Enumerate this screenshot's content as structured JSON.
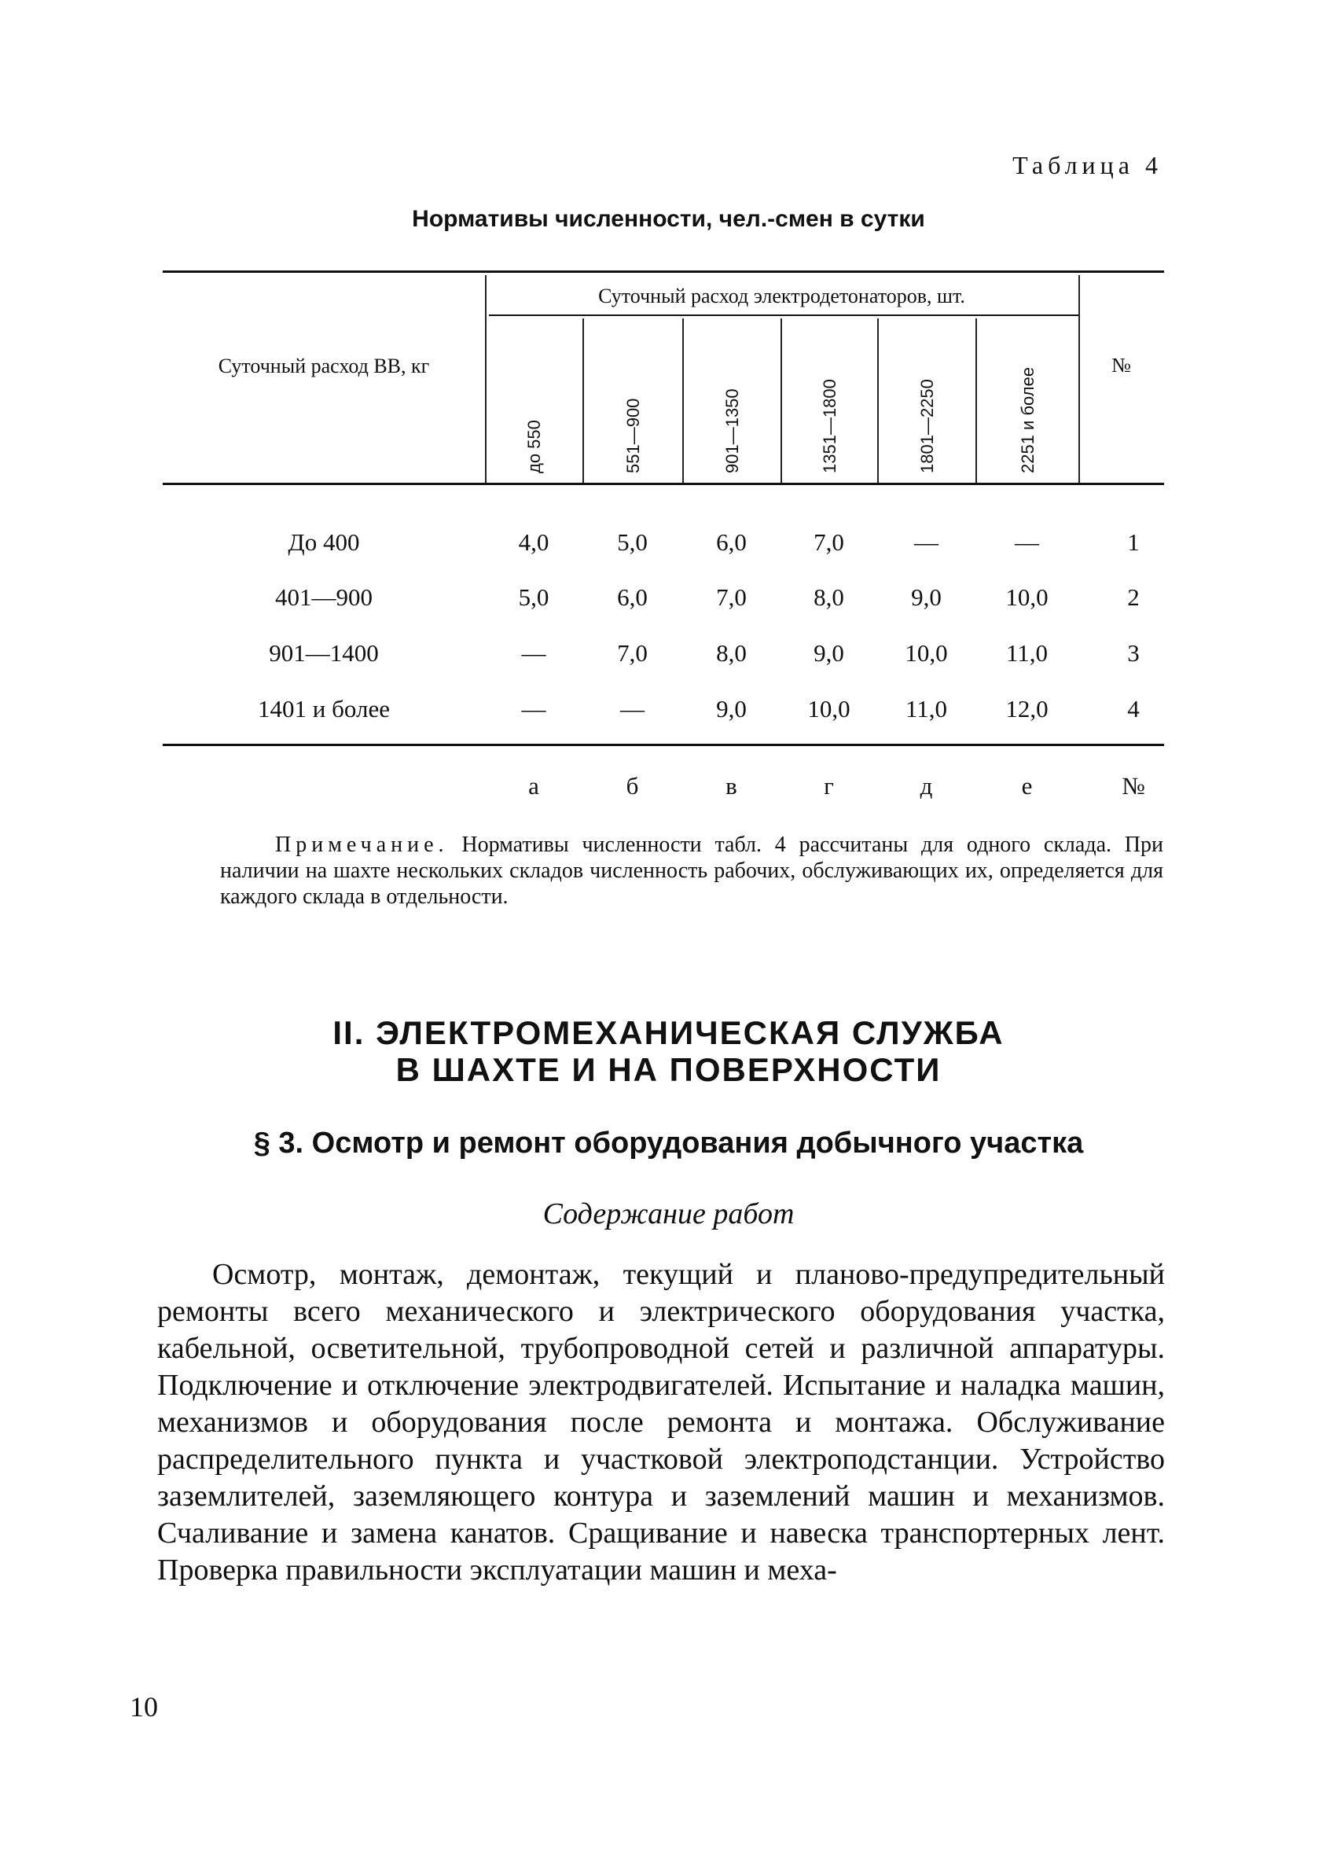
{
  "table_label": "Таблица 4",
  "table_title": "Нормативы численности, чел.-смен в сутки",
  "table": {
    "row_header": "Суточный расход ВВ, кг",
    "group_header": "Суточный расход электродетонаторов, шт.",
    "column_headers": [
      "до 550",
      "551—900",
      "901—1350",
      "1351—1800",
      "1801—2250",
      "2251 и более"
    ],
    "no_header": "№",
    "rows": [
      {
        "label": "До 400",
        "values": [
          "4,0",
          "5,0",
          "6,0",
          "7,0",
          "—",
          "—"
        ],
        "no": "1"
      },
      {
        "label": "401—900",
        "values": [
          "5,0",
          "6,0",
          "7,0",
          "8,0",
          "9,0",
          "10,0"
        ],
        "no": "2"
      },
      {
        "label": "901—1400",
        "values": [
          "—",
          "7,0",
          "8,0",
          "9,0",
          "10,0",
          "11,0"
        ],
        "no": "3"
      },
      {
        "label": "1401 и более",
        "values": [
          "—",
          "—",
          "9,0",
          "10,0",
          "11,0",
          "12,0"
        ],
        "no": "4"
      }
    ],
    "column_letters": [
      "а",
      "б",
      "в",
      "г",
      "д",
      "е"
    ],
    "letters_no": "№"
  },
  "note": {
    "label": "Примечание.",
    "text": "Нормативы численности табл. 4 рассчитаны для одного склада. При наличии на шахте нескольких складов численность рабочих, обслуживающих их, определяется для каждого склада в отдельности."
  },
  "section_title_1": "II. ЭЛЕКТРОМЕХАНИЧЕСКАЯ СЛУЖБА",
  "section_title_2": "В ШАХТЕ И НА ПОВЕРХНОСТИ",
  "subsection_title": "§ 3. Осмотр и ремонт оборудования добычного участка",
  "content_heading": "Содержание работ",
  "body_text": "Осмотр, монтаж, демонтаж, текущий и планово-предупредительный ремонты всего механического и электрического оборудования участка, кабельной, осветительной, трубопроводной сетей и различной аппаратуры. Подключение и отключение электродвигателей. Испытание и наладка машин, механизмов и оборудования после ремонта и монтажа. Обслуживание распределительного пункта и участковой электроподстанции. Устройство заземлителей, заземляющего контура и заземлений машин и механизмов. Счаливание и замена канатов. Сращивание и навеска транспортерных лент. Проверка правильности эксплуатации машин и меха-",
  "page_number": "10"
}
